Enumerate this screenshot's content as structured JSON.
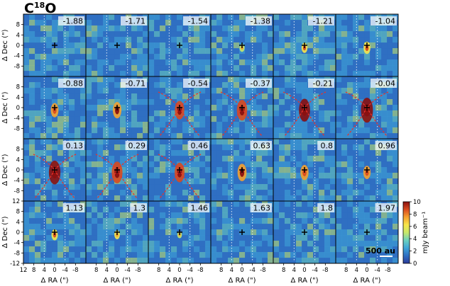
{
  "chart_data": {
    "type": "heatmap",
    "title": "C",
    "title_superscript": "18",
    "title_suffix": "O",
    "xlabel": "Δ RA (\")",
    "ylabel": "Δ Dec (\")",
    "xlim": [
      12,
      -12
    ],
    "ylim": [
      -12,
      12
    ],
    "x_ticks": [
      "12",
      "8",
      "4",
      "0",
      "-4",
      "-8"
    ],
    "y_ticks_upper": [
      "8",
      "4",
      "0",
      "-4",
      "-8"
    ],
    "y_ticks_bottom": [
      "12",
      "8",
      "4",
      "0",
      "-4",
      "-8",
      "-12"
    ],
    "colorbar": {
      "label": "mJy beam⁻¹",
      "range": [
        0,
        10
      ],
      "ticks": [
        "0",
        "2",
        "4",
        "6",
        "8",
        "10"
      ],
      "colormap": [
        "#2c3a9a",
        "#2f6fc2",
        "#3fa5d8",
        "#6bd0c0",
        "#c8e86a",
        "#f7e64a",
        "#f5a12f",
        "#d94a1e",
        "#8a1010"
      ]
    },
    "scalebar_label": "500 au",
    "channels": [
      "-1.88",
      "-1.71",
      "-1.54",
      "-1.38",
      "-1.21",
      "-1.04",
      "-0.88",
      "-0.71",
      "-0.54",
      "-0.37",
      "-0.21",
      "-0.04",
      "0.13",
      "0.29",
      "0.46",
      "0.63",
      "0.8",
      "0.96",
      "1.13",
      "1.3",
      "1.46",
      "1.63",
      "1.8",
      "1.97"
    ],
    "source_position": [
      0,
      0
    ]
  }
}
